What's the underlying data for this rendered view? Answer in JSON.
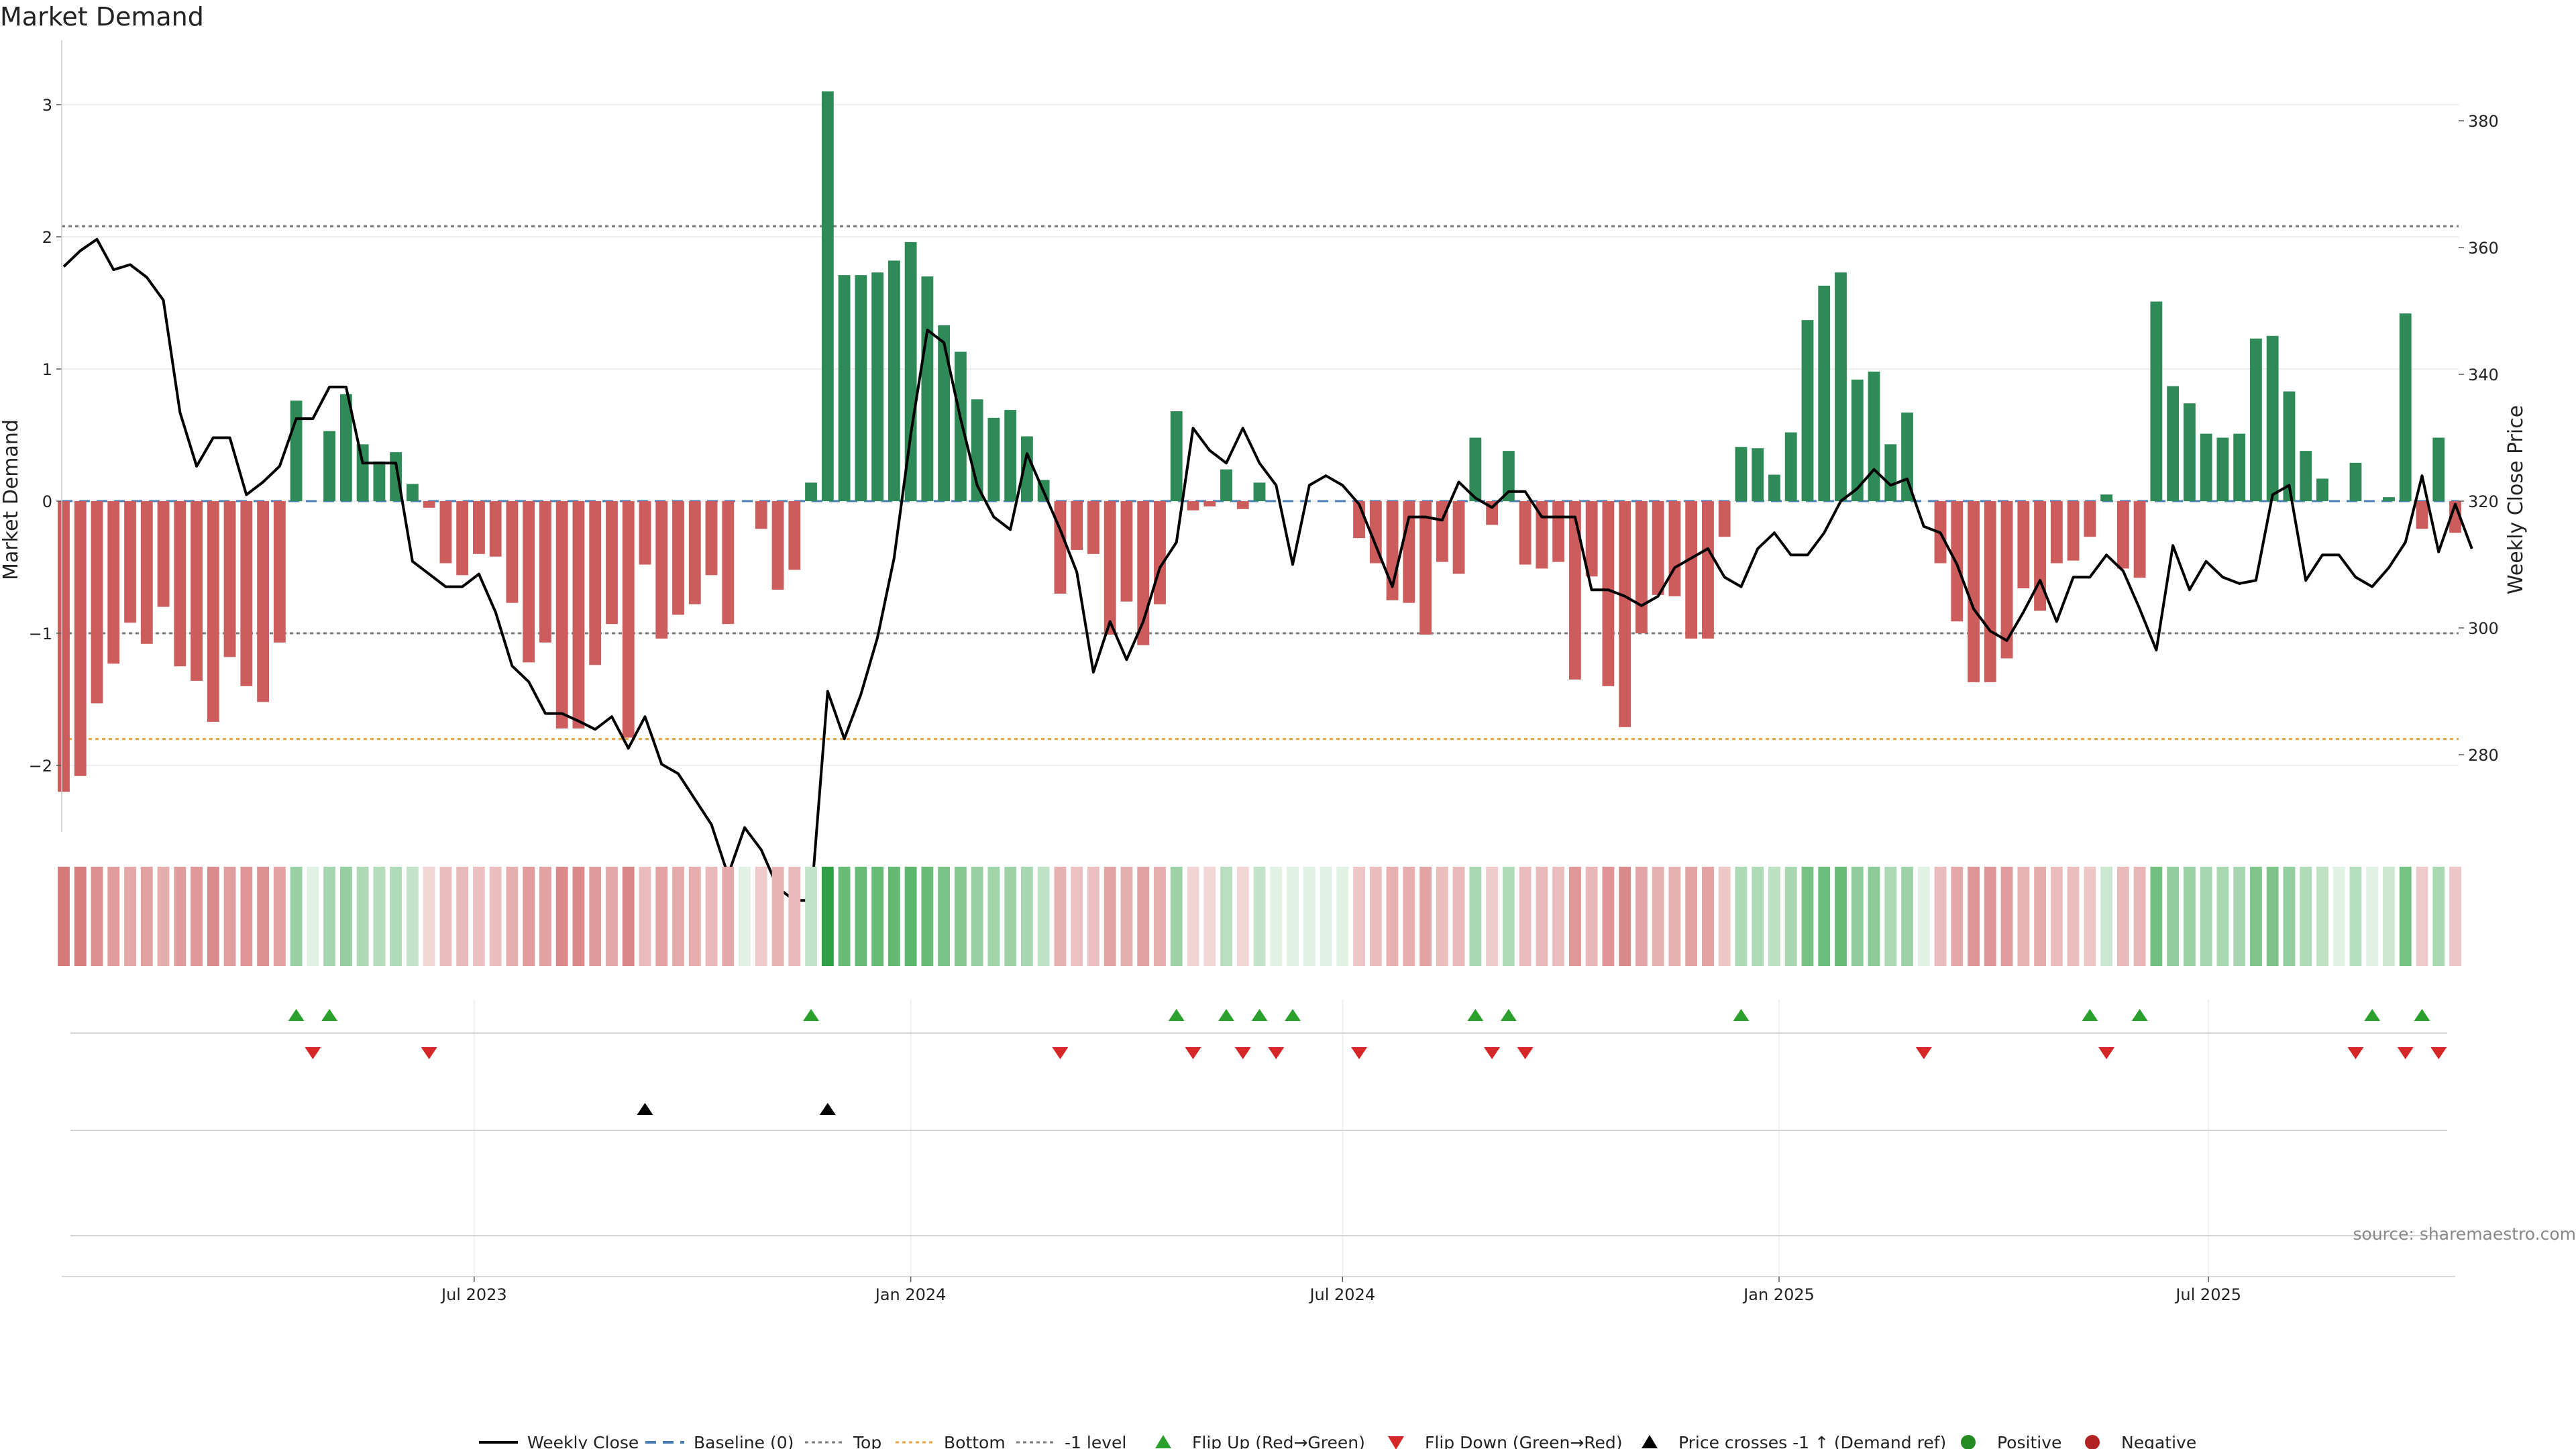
{
  "chart_data": {
    "type": "bar",
    "title": "Market Demand",
    "ylabel_left": "Market Demand",
    "ylabel_right": "Weekly Close Price",
    "ylim_left": [
      -2.5,
      3.2
    ],
    "ylim_right": [
      267,
      382
    ],
    "yticks_left": [
      {
        "v": -2,
        "label": "−2"
      },
      {
        "v": -1,
        "label": "−1"
      },
      {
        "v": 0,
        "label": "0"
      },
      {
        "v": 1,
        "label": "1"
      },
      {
        "v": 2,
        "label": "2"
      },
      {
        "v": 3,
        "label": "3"
      }
    ],
    "yticks_right": [
      280,
      300,
      320,
      340,
      360,
      380
    ],
    "levels": {
      "baseline": 0,
      "top": 2.08,
      "bottom": -1.8,
      "minus_one": -1
    },
    "x_start": "2023-01-09",
    "x_tick_labels": [
      {
        "date": "2023-07-01",
        "label": "Jul 2023"
      },
      {
        "date": "2024-01-01",
        "label": "Jan 2024"
      },
      {
        "date": "2024-07-01",
        "label": "Jul 2024"
      },
      {
        "date": "2025-01-01",
        "label": "Jan 2025"
      },
      {
        "date": "2025-07-01",
        "label": "Jul 2025"
      }
    ],
    "demand": [
      -2.2,
      -2.08,
      -1.53,
      -1.23,
      -0.92,
      -1.08,
      -0.8,
      -1.25,
      -1.36,
      -1.67,
      -1.18,
      -1.4,
      -1.52,
      -1.07,
      0.76,
      0.0,
      0.53,
      0.81,
      0.43,
      0.3,
      0.37,
      0.13,
      -0.05,
      -0.47,
      -0.56,
      -0.4,
      -0.42,
      -0.77,
      -1.22,
      -1.07,
      -1.72,
      -1.72,
      -1.24,
      -0.93,
      -1.79,
      -0.48,
      -1.04,
      -0.86,
      -0.78,
      -0.56,
      -0.93,
      0.0,
      -0.21,
      -0.67,
      -0.52,
      0.14,
      3.1,
      1.71,
      1.71,
      1.73,
      1.82,
      1.96,
      1.7,
      1.33,
      1.13,
      0.77,
      0.63,
      0.69,
      0.49,
      0.16,
      -0.7,
      -0.37,
      -0.4,
      -1.01,
      -0.76,
      -1.09,
      -0.78,
      0.68,
      -0.07,
      -0.04,
      0.24,
      -0.06,
      0.14,
      0.0,
      0.0,
      0.0,
      0.0,
      0.0,
      -0.28,
      -0.47,
      -0.75,
      -0.77,
      -1.01,
      -0.46,
      -0.55,
      0.48,
      -0.18,
      0.38,
      -0.48,
      -0.51,
      -0.46,
      -1.35,
      -0.57,
      -1.4,
      -1.71,
      -1.0,
      -0.71,
      -0.72,
      -1.04,
      -1.04,
      -0.27,
      0.41,
      0.4,
      0.2,
      0.52,
      1.37,
      1.63,
      1.73,
      0.92,
      0.98,
      0.43,
      0.67,
      0.0,
      -0.47,
      -0.91,
      -1.37,
      -1.37,
      -1.19,
      -0.66,
      -0.83,
      -0.47,
      -0.45,
      -0.27,
      0.05,
      -0.51,
      -0.58,
      1.51,
      0.87,
      0.74,
      0.51,
      0.48,
      0.51,
      1.23,
      1.25,
      0.83,
      0.38,
      0.17,
      0.0,
      0.29,
      0.0,
      0.03,
      1.42,
      -0.21,
      0.48,
      -0.24
    ],
    "close_line": [
      [
        0.0,
        357.0
      ],
      [
        1.0,
        359.5
      ],
      [
        2.0,
        361.3
      ],
      [
        3.0,
        356.5
      ],
      [
        4.0,
        357.3
      ],
      [
        5.0,
        355.3
      ],
      [
        6.0,
        351.7
      ],
      [
        7.0,
        334.0
      ],
      [
        8.0,
        325.5
      ],
      [
        9.0,
        330.0
      ],
      [
        10.0,
        330.0
      ],
      [
        11.0,
        321.0
      ],
      [
        12.0,
        323.0
      ],
      [
        13.0,
        325.5
      ],
      [
        14.0,
        333.0
      ],
      [
        15.0,
        333.0
      ],
      [
        16.0,
        338.0
      ],
      [
        17.0,
        338.0
      ],
      [
        18.0,
        326.0
      ],
      [
        19.0,
        326.0
      ],
      [
        20.0,
        326.0
      ],
      [
        21.0,
        310.5
      ],
      [
        22.0,
        308.5
      ],
      [
        23.0,
        306.5
      ],
      [
        24.0,
        306.5
      ],
      [
        25.0,
        308.5
      ],
      [
        26.0,
        302.5
      ],
      [
        27.0,
        294.0
      ],
      [
        28.0,
        291.5
      ],
      [
        29.0,
        286.5
      ],
      [
        30.0,
        286.5
      ],
      [
        31.0,
        285.3
      ],
      [
        32.0,
        284.0
      ],
      [
        33.0,
        286.0
      ],
      [
        34.0,
        281.0
      ],
      [
        35.0,
        286.0
      ],
      [
        36.0,
        278.5
      ],
      [
        37.0,
        277.0
      ],
      [
        38.0,
        273.0
      ],
      [
        39.0,
        269.0
      ],
      [
        40.0,
        261.0
      ],
      [
        41.0,
        268.5
      ],
      [
        42.0,
        265.0
      ],
      [
        43.0,
        259.0
      ],
      [
        44.0,
        257.0
      ],
      [
        45.0,
        257.0
      ],
      [
        46.0,
        290.0
      ],
      [
        47.0,
        282.5
      ],
      [
        48.0,
        289.5
      ],
      [
        49.0,
        298.5
      ],
      [
        50.0,
        311.0
      ],
      [
        51.0,
        330.5
      ],
      [
        52.0,
        347.0
      ],
      [
        53.0,
        345.0
      ],
      [
        54.0,
        333.0
      ],
      [
        55.0,
        322.5
      ],
      [
        56.0,
        317.5
      ],
      [
        57.0,
        315.5
      ],
      [
        58.0,
        327.5
      ],
      [
        59.0,
        321.5
      ],
      [
        60.0,
        315.5
      ],
      [
        61.0,
        308.8
      ],
      [
        62.0,
        293.0
      ],
      [
        63.0,
        301.0
      ],
      [
        64.0,
        295.0
      ],
      [
        65.0,
        301.0
      ],
      [
        66.0,
        309.5
      ],
      [
        67.0,
        313.5
      ],
      [
        68.0,
        331.5
      ],
      [
        69.0,
        328.0
      ],
      [
        70.0,
        326.0
      ],
      [
        71.0,
        331.5
      ],
      [
        72.0,
        326.0
      ],
      [
        73.0,
        322.5
      ],
      [
        74.0,
        310.0
      ],
      [
        75.0,
        322.5
      ],
      [
        76.0,
        324.0
      ],
      [
        77.0,
        322.5
      ],
      [
        78.0,
        319.5
      ],
      [
        79.0,
        313.0
      ],
      [
        80.0,
        306.5
      ],
      [
        81.0,
        317.5
      ],
      [
        82.0,
        317.5
      ],
      [
        83.0,
        317.0
      ],
      [
        84.0,
        323.0
      ],
      [
        85.0,
        320.5
      ],
      [
        86.0,
        319.0
      ],
      [
        87.0,
        321.5
      ],
      [
        88.0,
        321.5
      ],
      [
        89.0,
        317.5
      ],
      [
        90.0,
        317.5
      ],
      [
        91.0,
        317.5
      ],
      [
        92.0,
        306.0
      ],
      [
        93.0,
        306.0
      ],
      [
        94.0,
        305.0
      ],
      [
        95.0,
        303.5
      ],
      [
        96.0,
        305.0
      ],
      [
        97.0,
        309.5
      ],
      [
        98.0,
        311.0
      ],
      [
        99.0,
        312.5
      ],
      [
        100.0,
        308.0
      ],
      [
        101.0,
        306.5
      ],
      [
        102.0,
        312.5
      ],
      [
        103.0,
        315.0
      ],
      [
        104.0,
        311.5
      ],
      [
        105.0,
        311.5
      ],
      [
        106.0,
        315.0
      ],
      [
        107.0,
        320.0
      ],
      [
        108.0,
        322.0
      ],
      [
        109.0,
        325.0
      ],
      [
        110.0,
        322.5
      ],
      [
        111.0,
        323.5
      ],
      [
        112.0,
        316.0
      ],
      [
        113.0,
        315.0
      ],
      [
        114.0,
        310.0
      ],
      [
        115.0,
        303.0
      ],
      [
        116.0,
        299.5
      ],
      [
        117.0,
        298.0
      ],
      [
        118.0,
        302.5
      ],
      [
        119.0,
        307.5
      ],
      [
        120.0,
        301.0
      ],
      [
        121.0,
        308.0
      ],
      [
        122.0,
        308.0
      ],
      [
        123.0,
        311.5
      ],
      [
        124.0,
        309.0
      ],
      [
        125.0,
        303.0
      ],
      [
        126.0,
        296.5
      ],
      [
        127.0,
        313.0
      ],
      [
        128.0,
        306.0
      ],
      [
        129.0,
        310.5
      ],
      [
        130.0,
        308.0
      ],
      [
        131.0,
        307.0
      ],
      [
        132.0,
        307.5
      ],
      [
        133.0,
        321.0
      ],
      [
        134.0,
        322.5
      ],
      [
        135.0,
        307.5
      ],
      [
        136.0,
        311.5
      ],
      [
        137.0,
        311.5
      ],
      [
        138.0,
        308.0
      ],
      [
        139.0,
        306.5
      ],
      [
        140.0,
        309.5
      ],
      [
        141.0,
        313.5
      ],
      [
        142.0,
        324.0
      ],
      [
        143.0,
        312.0
      ],
      [
        144.0,
        319.5
      ],
      [
        145.0,
        312.5
      ]
    ],
    "flip_up_idx": [
      14,
      16,
      45,
      67,
      70,
      72,
      74,
      85,
      87,
      101,
      122,
      125,
      139,
      142
    ],
    "flip_down_idx": [
      15,
      22,
      60,
      68,
      71,
      73,
      78,
      86,
      88,
      112,
      123,
      138,
      141,
      143
    ],
    "price_cross_idx": [
      35,
      46
    ],
    "legend": [
      "Weekly Close",
      "Baseline (0)",
      "Top",
      "Bottom",
      "-1 level",
      "Flip Up (Red→Green)",
      "Flip Down (Green→Red)",
      "Price crosses -1 ↑ (Demand ref)",
      "Positive",
      "Negative"
    ],
    "source": "source: sharemaestro.com",
    "colors": {
      "positive": "#2e8b57",
      "negative": "#cd5c5c",
      "line": "#000000",
      "baseline": "#4a7fb5",
      "top": "#7a7a7a",
      "bottom": "#e8a23c",
      "minus_one": "#7a7a7a",
      "flip_up": "#2ca02c",
      "flip_down": "#d62728",
      "cross": "#000000",
      "positive_dot": "#228b22",
      "negative_dot": "#b22222"
    }
  }
}
